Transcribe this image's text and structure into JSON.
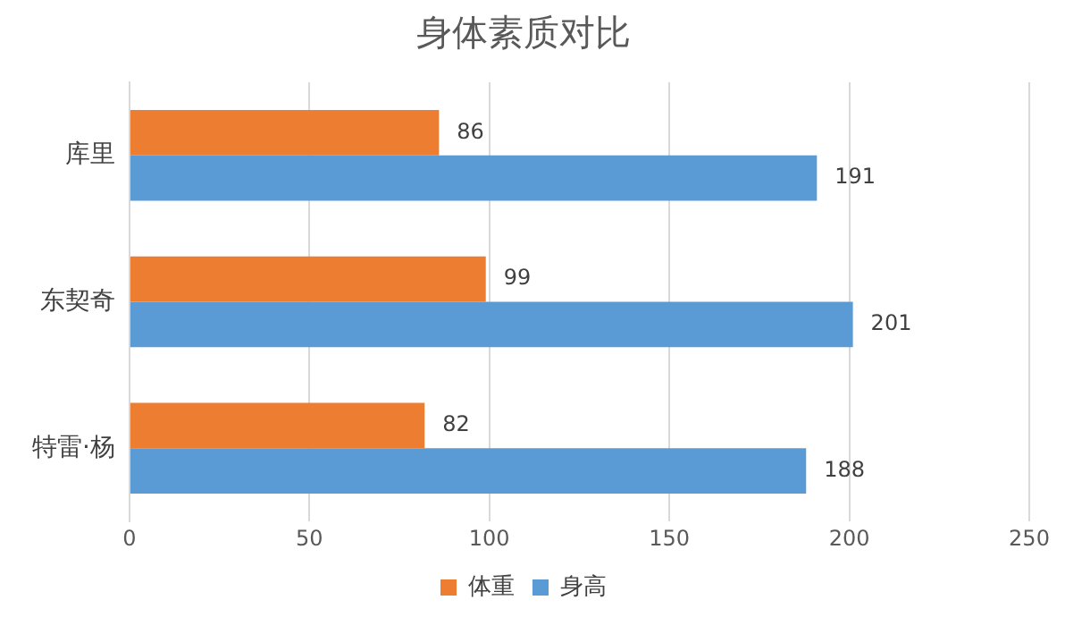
{
  "chart_data": {
    "type": "bar",
    "orientation": "horizontal",
    "title": "身体素质对比",
    "categories": [
      "库里",
      "东契奇",
      "特雷·杨"
    ],
    "series": [
      {
        "name": "体重",
        "color": "#ed7d31",
        "values": [
          86,
          99,
          82
        ]
      },
      {
        "name": "身高",
        "color": "#5b9bd5",
        "values": [
          191,
          201,
          188
        ]
      }
    ],
    "xlim": [
      0,
      250
    ],
    "xticks": [
      0,
      50,
      100,
      150,
      200,
      250
    ],
    "grid": "x",
    "legend": "bottom",
    "data_labels": true
  }
}
